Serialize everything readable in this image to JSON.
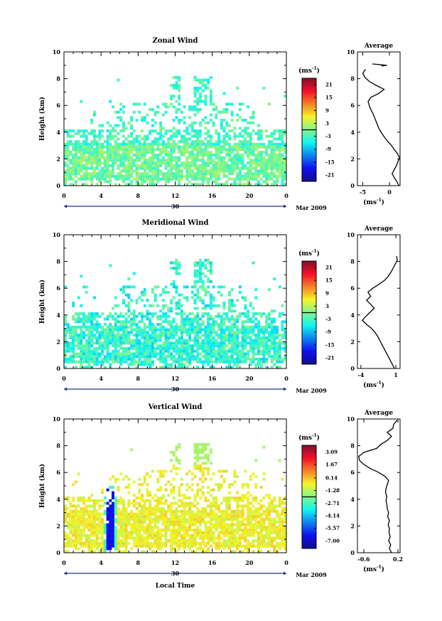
{
  "chart_data": [
    {
      "type": "heatmap",
      "title": "Zonal Wind",
      "ylabel": "Height (km)",
      "xlabel": "",
      "ylim": [
        0,
        10
      ],
      "yticks": [
        "0",
        "2",
        "4",
        "6",
        "8",
        "10"
      ],
      "xlim": [
        0,
        24
      ],
      "xticks": [
        "0",
        "4",
        "8",
        "12",
        "16",
        "20",
        "0"
      ],
      "date_day": "30",
      "date_month_year": "Mar 2009",
      "colorbar": {
        "unit": "(ms",
        "unit_exp": "-1",
        "unit_close": ")",
        "range": [
          -24,
          24
        ],
        "ticks": [
          "21",
          "15",
          "9",
          "3",
          "-3",
          "-9",
          "-15",
          "-21"
        ],
        "tick_values": [
          21,
          15,
          9,
          3,
          -3,
          -9,
          -15,
          -21
        ]
      },
      "average": {
        "title": "Average",
        "xlabel": "(ms",
        "xlabel_exp": "-1",
        "xlabel_close": ")",
        "xlim": [
          -6,
          2
        ],
        "xticks": [
          "-5",
          "0"
        ],
        "xtick_values": [
          -5,
          0
        ],
        "yticks": [
          "0",
          "2",
          "4",
          "6",
          "8",
          "10"
        ],
        "profile": [
          [
            0.0,
            1.8
          ],
          [
            0.3,
            1.4
          ],
          [
            0.6,
            0.9
          ],
          [
            0.9,
            0.5
          ],
          [
            1.2,
            0.9
          ],
          [
            1.5,
            1.3
          ],
          [
            1.8,
            1.6
          ],
          [
            2.1,
            1.9
          ],
          [
            2.4,
            1.5
          ],
          [
            2.7,
            0.9
          ],
          [
            3.0,
            0.4
          ],
          [
            3.3,
            -0.3
          ],
          [
            3.6,
            -0.9
          ],
          [
            3.9,
            -1.4
          ],
          [
            4.2,
            -1.9
          ],
          [
            4.5,
            -2.2
          ],
          [
            4.8,
            -2.5
          ],
          [
            5.1,
            -2.8
          ],
          [
            5.4,
            -3.1
          ],
          [
            5.7,
            -3.5
          ],
          [
            6.0,
            -3.8
          ],
          [
            6.3,
            -4.0
          ],
          [
            6.6,
            -3.5
          ],
          [
            6.9,
            -2.0
          ],
          [
            7.2,
            -1.0
          ],
          [
            7.5,
            -2.5
          ],
          [
            7.8,
            -3.8
          ],
          [
            8.1,
            -4.6
          ],
          [
            8.4,
            -5.0
          ],
          [
            8.7,
            -4.5
          ]
        ],
        "profile_upper": [
          [
            9.1,
            -3.2
          ],
          [
            9.0,
            -0.5
          ],
          [
            8.95,
            -1.5
          ]
        ]
      }
    },
    {
      "type": "heatmap",
      "title": "Meridional Wind",
      "ylabel": "Height (km)",
      "xlabel": "",
      "ylim": [
        0,
        10
      ],
      "yticks": [
        "0",
        "2",
        "4",
        "6",
        "8",
        "10"
      ],
      "xlim": [
        0,
        24
      ],
      "xticks": [
        "0",
        "4",
        "8",
        "12",
        "16",
        "20",
        "0"
      ],
      "date_day": "30",
      "date_month_year": "Mar 2009",
      "colorbar": {
        "unit": "(ms",
        "unit_exp": "-1",
        "unit_close": ")",
        "range": [
          -24,
          24
        ],
        "ticks": [
          "21",
          "15",
          "9",
          "3",
          "-3",
          "-9",
          "-15",
          "-21"
        ],
        "tick_values": [
          21,
          15,
          9,
          3,
          -3,
          -9,
          -15,
          -21
        ]
      },
      "average": {
        "title": "Average",
        "xlabel": "(ms",
        "xlabel_exp": "-1",
        "xlabel_close": ")",
        "xlim": [
          -4.5,
          1.6
        ],
        "xticks": [
          "-4",
          "1"
        ],
        "xtick_values": [
          -4,
          1
        ],
        "yticks": [
          "0",
          "2",
          "4",
          "6",
          "8",
          "10"
        ],
        "profile": [
          [
            0.0,
            0.8
          ],
          [
            0.3,
            0.5
          ],
          [
            0.6,
            0.2
          ],
          [
            0.9,
            -0.1
          ],
          [
            1.2,
            -0.4
          ],
          [
            1.5,
            -0.7
          ],
          [
            1.8,
            -1.0
          ],
          [
            2.1,
            -1.3
          ],
          [
            2.4,
            -1.6
          ],
          [
            2.7,
            -2.0
          ],
          [
            3.0,
            -2.5
          ],
          [
            3.3,
            -3.2
          ],
          [
            3.6,
            -3.8
          ],
          [
            3.9,
            -3.3
          ],
          [
            4.2,
            -2.7
          ],
          [
            4.5,
            -2.1
          ],
          [
            4.8,
            -2.6
          ],
          [
            5.1,
            -3.2
          ],
          [
            5.4,
            -2.6
          ],
          [
            5.7,
            -3.0
          ],
          [
            6.0,
            -2.3
          ],
          [
            6.3,
            -1.4
          ],
          [
            6.6,
            -0.6
          ],
          [
            6.9,
            -0.1
          ],
          [
            7.2,
            0.3
          ],
          [
            7.5,
            0.6
          ],
          [
            7.8,
            0.9
          ],
          [
            8.1,
            1.2
          ],
          [
            8.4,
            1.1
          ]
        ]
      }
    },
    {
      "type": "heatmap",
      "title": "Vertical Wind",
      "ylabel": "Height (km)",
      "xlabel": "Local Time",
      "ylim": [
        0,
        10
      ],
      "yticks": [
        "0",
        "2",
        "4",
        "6",
        "8",
        "10"
      ],
      "xlim": [
        0,
        24
      ],
      "xticks": [
        "0",
        "4",
        "8",
        "12",
        "16",
        "20",
        "0"
      ],
      "date_day": "30",
      "date_month_year": "Mar 2009",
      "colorbar": {
        "unit": "(ms",
        "unit_exp": "-1",
        "unit_close": ")",
        "range": [
          -7.85,
          3.85
        ],
        "ticks": [
          "3.09",
          "1.67",
          "0.14",
          "-1.28",
          "-2.71",
          "-4.14",
          "-5.57",
          "-7.00"
        ],
        "tick_values": [
          3.09,
          1.67,
          0.14,
          -1.28,
          -2.71,
          -4.14,
          -5.57,
          -7.0
        ]
      },
      "average": {
        "title": "Average",
        "xlabel": "(ms",
        "xlabel_exp": "-1",
        "xlabel_close": ")",
        "xlim": [
          -0.75,
          0.25
        ],
        "xticks": [
          "-0.6",
          "0.2"
        ],
        "xtick_values": [
          -0.6,
          0.2
        ],
        "yticks": [
          "0",
          "2",
          "4",
          "6",
          "8",
          "10"
        ],
        "profile": [
          [
            0.0,
            0.05
          ],
          [
            0.3,
            0.0
          ],
          [
            0.6,
            0.03
          ],
          [
            0.9,
            -0.02
          ],
          [
            1.2,
            0.02
          ],
          [
            1.5,
            -0.01
          ],
          [
            1.8,
            0.0
          ],
          [
            2.1,
            -0.03
          ],
          [
            2.4,
            0.0
          ],
          [
            2.7,
            -0.04
          ],
          [
            3.0,
            -0.02
          ],
          [
            3.3,
            -0.05
          ],
          [
            3.6,
            -0.06
          ],
          [
            3.9,
            -0.08
          ],
          [
            4.2,
            -0.06
          ],
          [
            4.5,
            -0.09
          ],
          [
            4.8,
            -0.08
          ],
          [
            5.1,
            -0.05
          ],
          [
            5.4,
            -0.02
          ],
          [
            5.7,
            -0.1
          ],
          [
            6.0,
            -0.25
          ],
          [
            6.3,
            -0.45
          ],
          [
            6.6,
            -0.6
          ],
          [
            6.9,
            -0.7
          ],
          [
            7.2,
            -0.72
          ],
          [
            7.5,
            -0.6
          ],
          [
            7.8,
            -0.3
          ],
          [
            8.1,
            -0.2
          ],
          [
            8.4,
            -0.05
          ],
          [
            8.7,
            0.05
          ],
          [
            9.0,
            -0.05
          ],
          [
            9.3,
            0.08
          ],
          [
            9.6,
            0.1
          ],
          [
            9.9,
            0.18
          ]
        ]
      }
    }
  ]
}
